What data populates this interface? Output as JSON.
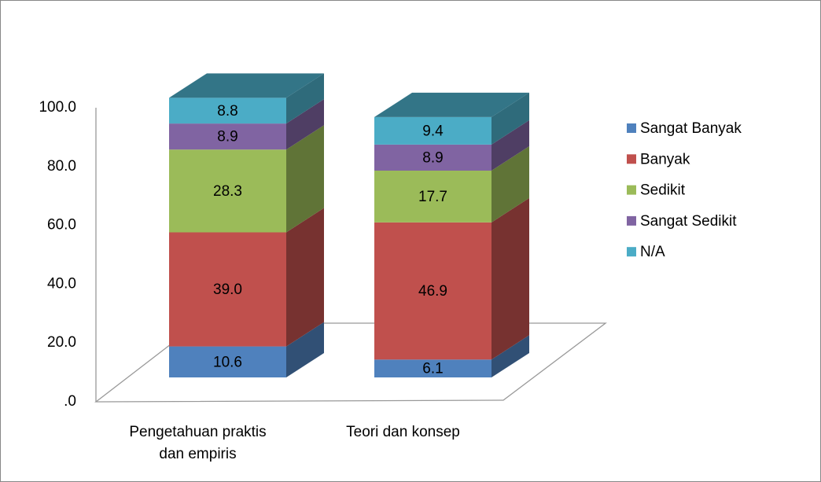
{
  "chart_data": {
    "type": "bar3d_stacked",
    "categories": [
      "Pengetahuan praktis dan empiris",
      "Teori dan konsep"
    ],
    "series": [
      {
        "name": "Sangat Banyak",
        "color": "#4f81bd",
        "values": [
          10.6,
          6.1
        ]
      },
      {
        "name": "Banyak",
        "color": "#c0504d",
        "values": [
          39.0,
          46.9
        ],
        "value_labels": [
          "39.0",
          "46.9"
        ]
      },
      {
        "name": "Sedikit",
        "color": "#9bbb59",
        "values": [
          28.3,
          17.7
        ]
      },
      {
        "name": "Sangat Sedikit",
        "color": "#8064a2",
        "values": [
          8.9,
          8.9
        ]
      },
      {
        "name": "N/A",
        "color": "#4bacc6",
        "values": [
          8.8,
          9.4
        ]
      }
    ],
    "ylim": [
      0,
      100
    ],
    "yticks": [
      {
        "value": 0,
        "label": ".0"
      },
      {
        "value": 20,
        "label": "20.0"
      },
      {
        "value": 40,
        "label": "40.0"
      },
      {
        "value": 60,
        "label": "60.0"
      },
      {
        "value": 80,
        "label": "80.0"
      },
      {
        "value": 100,
        "label": "100.0"
      }
    ],
    "legend": "right"
  }
}
